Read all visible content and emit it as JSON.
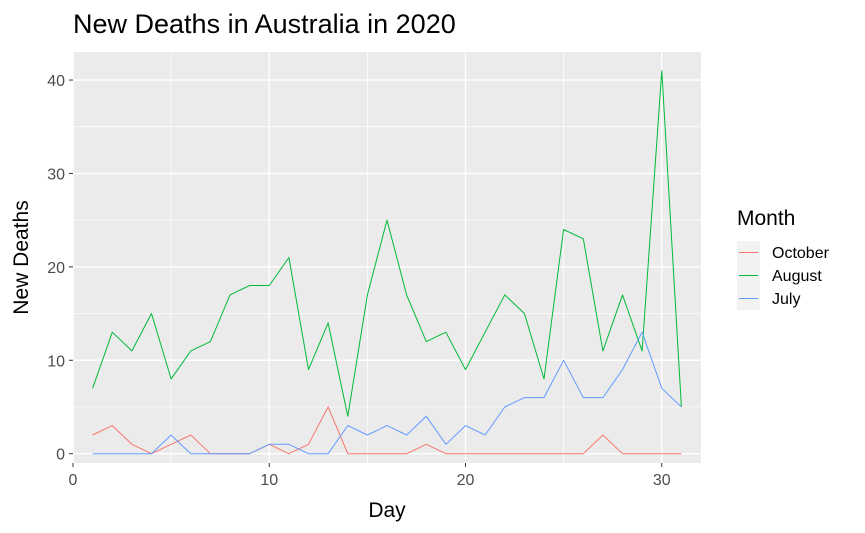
{
  "chart_data": {
    "type": "line",
    "title": "New Deaths in Australia in 2020",
    "xlabel": "Day",
    "ylabel": "New Deaths",
    "xlim": [
      0,
      32
    ],
    "ylim": [
      -1,
      43
    ],
    "x_ticks": [
      0,
      10,
      20,
      30
    ],
    "y_ticks": [
      0,
      10,
      20,
      30,
      40
    ],
    "grid": true,
    "legend": {
      "title": "Month",
      "position": "right"
    },
    "series": [
      {
        "name": "October",
        "color": "#F8766D",
        "x": [
          1,
          2,
          3,
          4,
          5,
          6,
          7,
          8,
          9,
          10,
          11,
          12,
          13,
          14,
          15,
          16,
          17,
          18,
          19,
          20,
          21,
          22,
          23,
          24,
          25,
          26,
          27,
          28,
          29,
          30,
          31
        ],
        "values": [
          2,
          3,
          1,
          0,
          1,
          2,
          0,
          0,
          0,
          1,
          0,
          1,
          5,
          0,
          0,
          0,
          0,
          1,
          0,
          0,
          0,
          0,
          0,
          0,
          0,
          0,
          2,
          0,
          0,
          0,
          0
        ]
      },
      {
        "name": "August",
        "color": "#00BA38",
        "x": [
          1,
          2,
          3,
          4,
          5,
          6,
          7,
          8,
          9,
          10,
          11,
          12,
          13,
          14,
          15,
          16,
          17,
          18,
          19,
          20,
          21,
          22,
          23,
          24,
          25,
          26,
          27,
          28,
          29,
          30,
          31
        ],
        "values": [
          7,
          13,
          11,
          15,
          8,
          11,
          12,
          17,
          18,
          18,
          21,
          9,
          14,
          4,
          17,
          25,
          17,
          12,
          13,
          9,
          13,
          17,
          15,
          8,
          24,
          23,
          11,
          17,
          11,
          41,
          5
        ]
      },
      {
        "name": "July",
        "color": "#619CFF",
        "x": [
          1,
          2,
          3,
          4,
          5,
          6,
          7,
          8,
          9,
          10,
          11,
          12,
          13,
          14,
          15,
          16,
          17,
          18,
          19,
          20,
          21,
          22,
          23,
          24,
          25,
          26,
          27,
          28,
          29,
          30,
          31
        ],
        "values": [
          0,
          0,
          0,
          0,
          2,
          0,
          0,
          0,
          0,
          1,
          1,
          0,
          0,
          3,
          2,
          3,
          2,
          4,
          1,
          3,
          2,
          5,
          6,
          6,
          10,
          6,
          6,
          9,
          13,
          7,
          5
        ]
      }
    ]
  }
}
